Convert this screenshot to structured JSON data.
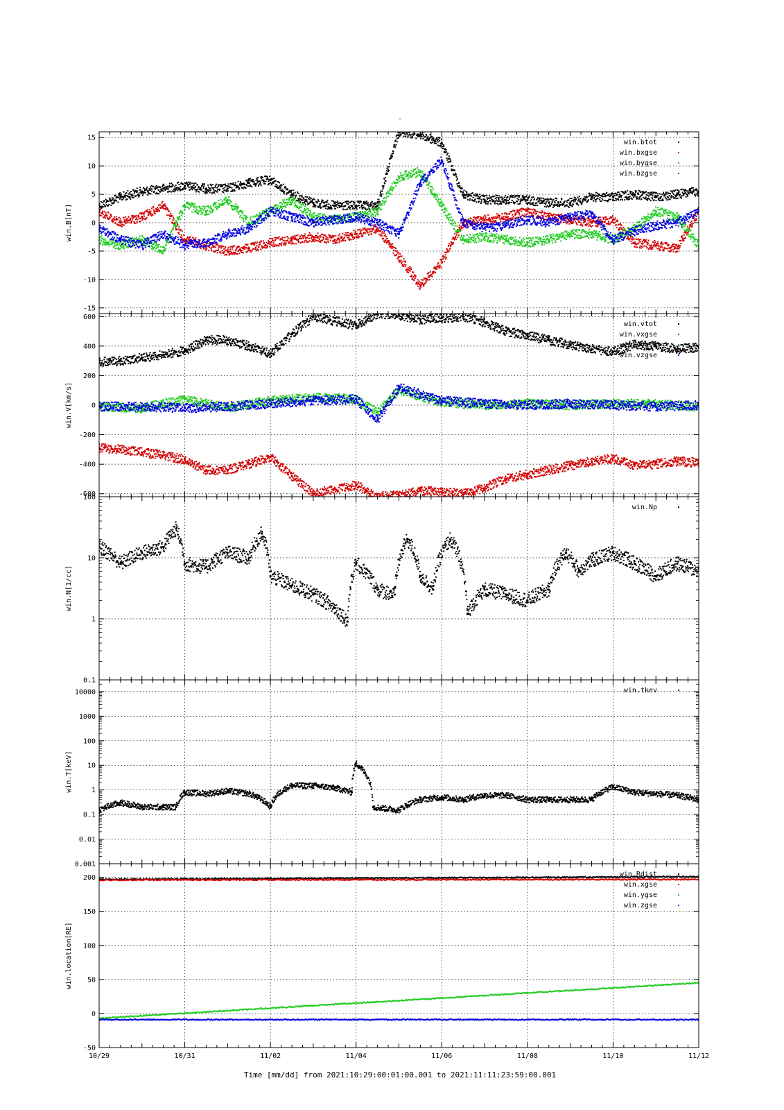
{
  "page": {
    "top_mark": "-",
    "footer": "Time [mm/dd]  from 2021:10:29:00:01:00.001  to  2021:11:11:23:59:00.001"
  },
  "colors": {
    "black": "#000000",
    "red": "#d40000",
    "green": "#1fcc1f",
    "blue": "#0000e0"
  },
  "chart_data": [
    {
      "type": "scatter",
      "id": "bfield",
      "ylabel": "win.B[nT]",
      "ylim": [
        -16,
        16
      ],
      "yticks": [
        -15,
        -10,
        -5,
        0,
        5,
        10,
        15
      ],
      "grid": true,
      "legend": "top-right",
      "x_ticks": [
        "10/29",
        "10/31",
        "11/02",
        "11/04",
        "11/06",
        "11/08",
        "11/10",
        "11/12"
      ],
      "series": [
        {
          "name": "win.btot",
          "color": "black",
          "x": [
            0,
            0.5,
            1,
            1.5,
            2,
            2.5,
            3,
            3.5,
            4,
            4.5,
            5,
            5.5,
            6,
            6.5,
            7,
            7.5,
            8,
            8.5,
            9,
            9.5,
            10,
            10.5,
            11,
            11.5,
            12,
            12.5,
            13,
            13.5,
            14
          ],
          "y": [
            3,
            4.5,
            5.5,
            6,
            6.5,
            6,
            6,
            7,
            7.5,
            5,
            3.5,
            3,
            3,
            3,
            16,
            15.5,
            14,
            5,
            4,
            4,
            4,
            3.5,
            3.5,
            4.5,
            4.5,
            5,
            4.5,
            5,
            5.5
          ]
        },
        {
          "name": "win.bxgse",
          "color": "red",
          "x": [
            0,
            0.5,
            1,
            1.5,
            2,
            2.5,
            3,
            3.5,
            4,
            4.5,
            5,
            5.5,
            6,
            6.5,
            7,
            7.5,
            8,
            8.5,
            9,
            9.5,
            10,
            10.5,
            11,
            11.5,
            12,
            12.5,
            13,
            13.5,
            14
          ],
          "y": [
            2,
            0,
            1,
            3,
            -3,
            -4,
            -5,
            -4.5,
            -3.5,
            -3,
            -2.5,
            -3,
            -2,
            -1,
            -6,
            -11,
            -7,
            0,
            0.5,
            1,
            2,
            1,
            0.5,
            0,
            0.5,
            -3.5,
            -4,
            -4.5,
            2
          ]
        },
        {
          "name": "win.bygse",
          "color": "green",
          "x": [
            0,
            0.5,
            1,
            1.5,
            2,
            2.5,
            3,
            3.5,
            4,
            4.5,
            5,
            5.5,
            6,
            6.5,
            7,
            7.5,
            8,
            8.5,
            9,
            9.5,
            10,
            10.5,
            11,
            11.5,
            12,
            12.5,
            13,
            13.5,
            14
          ],
          "y": [
            -3,
            -4,
            -3,
            -5,
            3,
            2,
            4,
            0,
            2,
            4,
            1,
            0.5,
            1,
            2,
            8,
            9,
            3,
            -3,
            -2.5,
            -3,
            -3.5,
            -3,
            -2,
            -2,
            -3,
            -1,
            2,
            1,
            -4
          ]
        },
        {
          "name": "win.bzgse",
          "color": "blue",
          "x": [
            0,
            0.5,
            1,
            1.5,
            2,
            2.5,
            3,
            3.5,
            4,
            4.5,
            5,
            5.5,
            6,
            6.5,
            7,
            7.5,
            8,
            8.5,
            9,
            9.5,
            10,
            10.5,
            11,
            11.5,
            12,
            12.5,
            13,
            13.5,
            14
          ],
          "y": [
            -1,
            -3,
            -4,
            -2,
            -4,
            -3.5,
            -2,
            -1,
            2,
            1,
            0,
            0.5,
            1,
            0,
            -2,
            7,
            11,
            0,
            -1,
            -0.5,
            0.5,
            0,
            1,
            1.5,
            -3,
            -1.5,
            -0.5,
            0,
            2
          ]
        }
      ]
    },
    {
      "type": "scatter",
      "id": "velocity",
      "ylabel": "win.V[km/s]",
      "ylim": [
        -620,
        620
      ],
      "yticks": [
        -600,
        -400,
        -200,
        0,
        200,
        400,
        600
      ],
      "grid": true,
      "legend": "top-right",
      "series": [
        {
          "name": "win.vtot",
          "color": "black",
          "x": [
            0,
            0.5,
            1,
            1.5,
            2,
            2.5,
            3,
            3.5,
            4,
            4.5,
            5,
            5.5,
            6,
            6.5,
            7,
            7.5,
            8,
            8.5,
            9,
            9.5,
            10,
            10.5,
            11,
            11.5,
            12,
            12.5,
            13,
            13.5,
            14
          ],
          "y": [
            290,
            300,
            320,
            340,
            370,
            440,
            440,
            400,
            350,
            480,
            600,
            570,
            540,
            620,
            610,
            580,
            590,
            600,
            560,
            500,
            470,
            440,
            410,
            380,
            360,
            410,
            400,
            380,
            390
          ]
        },
        {
          "name": "win.vxgse",
          "color": "red",
          "x": [
            0,
            0.5,
            1,
            1.5,
            2,
            2.5,
            3,
            3.5,
            4,
            4.5,
            5,
            5.5,
            6,
            6.5,
            7,
            7.5,
            8,
            8.5,
            9,
            9.5,
            10,
            10.5,
            11,
            11.5,
            12,
            12.5,
            13,
            13.5,
            14
          ],
          "y": [
            -290,
            -300,
            -320,
            -340,
            -370,
            -440,
            -440,
            -400,
            -350,
            -480,
            -600,
            -570,
            -540,
            -620,
            -610,
            -580,
            -590,
            -600,
            -560,
            -500,
            -470,
            -440,
            -410,
            -380,
            -360,
            -410,
            -400,
            -380,
            -390
          ]
        },
        {
          "name": "win.vygse",
          "color": "green",
          "x": [
            0,
            1,
            2,
            3,
            4,
            5,
            6,
            6.5,
            7,
            8,
            9,
            10,
            11,
            12,
            13,
            14
          ],
          "y": [
            -10,
            -20,
            40,
            -20,
            30,
            50,
            40,
            -50,
            100,
            20,
            0,
            10,
            0,
            10,
            10,
            -10
          ]
        },
        {
          "name": "win.vzgse",
          "color": "blue",
          "x": [
            0,
            1,
            2,
            3,
            4,
            5,
            6,
            6.5,
            7,
            8,
            9,
            10,
            11,
            12,
            13,
            14
          ],
          "y": [
            -10,
            -10,
            -20,
            -10,
            10,
            30,
            40,
            -100,
            120,
            30,
            10,
            0,
            10,
            0,
            -10,
            0
          ]
        }
      ]
    },
    {
      "type": "scatter",
      "id": "density",
      "ylabel": "win.N[1/cc]",
      "yscale": "log",
      "ylim": [
        0.1,
        100
      ],
      "yticks": [
        0.1,
        1,
        10,
        100
      ],
      "ytick_labels": [
        "0.1",
        "1",
        "10",
        "100"
      ],
      "grid": true,
      "legend": "top-right",
      "series": [
        {
          "name": "win.Np",
          "color": "black",
          "x": [
            0,
            0.5,
            1,
            1.5,
            1.8,
            2,
            2.5,
            3,
            3.5,
            3.8,
            4,
            4.5,
            5,
            5.5,
            5.8,
            6,
            6.5,
            6.9,
            7.2,
            7.5,
            7.8,
            8.2,
            8.6,
            9,
            9.5,
            10,
            10.5,
            10.9,
            11.2,
            11.5,
            12,
            12.5,
            13,
            13.5,
            14
          ],
          "y": [
            15,
            8,
            12,
            15,
            30,
            8,
            7,
            12,
            10,
            25,
            5,
            3.5,
            2.5,
            1.5,
            0.9,
            8,
            3,
            2.5,
            20,
            5,
            3,
            20,
            1.2,
            3,
            2.5,
            2,
            3,
            12,
            6,
            9,
            12,
            8,
            5,
            8,
            6
          ]
        }
      ]
    },
    {
      "type": "scatter",
      "id": "temperature",
      "ylabel": "win.T[keV]",
      "yscale": "log",
      "ylim": [
        0.001,
        30000
      ],
      "yticks": [
        0.001,
        0.01,
        0.1,
        1,
        10,
        100,
        1000,
        10000
      ],
      "ytick_labels": [
        "0.001",
        "0.01",
        "0.1",
        "1",
        "10",
        "100",
        "1000",
        "10000"
      ],
      "grid": true,
      "legend": "top-right",
      "series": [
        {
          "name": "win.tkev",
          "color": "black",
          "x": [
            0,
            0.5,
            1,
            1.5,
            1.8,
            2,
            2.5,
            3,
            3.5,
            4,
            4.5,
            5,
            5.5,
            5.9,
            6,
            6.2,
            6.4,
            7,
            7.5,
            8,
            8.5,
            9,
            9.5,
            10,
            10.5,
            11,
            11.5,
            12,
            12.5,
            13,
            13.5,
            14
          ],
          "y": [
            0.15,
            0.3,
            0.2,
            0.2,
            0.2,
            0.8,
            0.7,
            0.9,
            0.7,
            0.2,
            1.5,
            1.5,
            1.2,
            0.8,
            12,
            5,
            0.2,
            0.15,
            0.4,
            0.5,
            0.4,
            0.6,
            0.6,
            0.4,
            0.4,
            0.4,
            0.4,
            1.3,
            0.8,
            0.7,
            0.6,
            0.4
          ]
        }
      ]
    },
    {
      "type": "scatter",
      "id": "location",
      "ylabel": "win.location[RE]",
      "ylim": [
        -50,
        220
      ],
      "yticks": [
        -50,
        0,
        50,
        100,
        150,
        200
      ],
      "grid": true,
      "legend": "top-right",
      "series": [
        {
          "name": "win.Rdist",
          "color": "black",
          "x": [
            0,
            14
          ],
          "y": [
            197,
            201
          ]
        },
        {
          "name": "win.xgse",
          "color": "red",
          "x": [
            0,
            14
          ],
          "y": [
            196,
            197
          ]
        },
        {
          "name": "win.ygse",
          "color": "green",
          "x": [
            0,
            14
          ],
          "y": [
            -7,
            45
          ]
        },
        {
          "name": "win.zgse",
          "color": "blue",
          "x": [
            0,
            14
          ],
          "y": [
            -9,
            -9
          ]
        }
      ]
    }
  ]
}
